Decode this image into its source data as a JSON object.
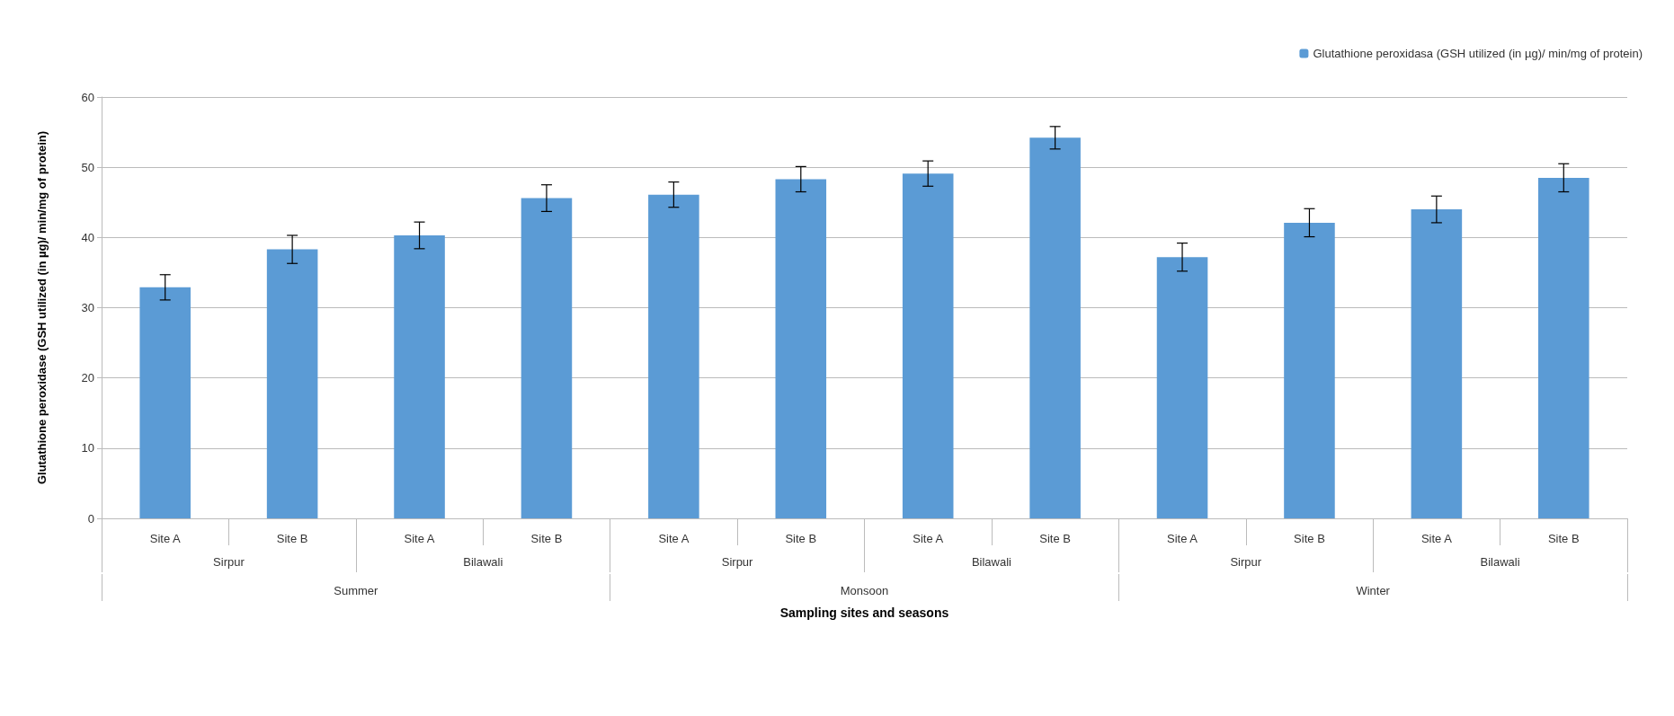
{
  "chart_data": {
    "type": "bar",
    "xlabel": "Sampling sites and seasons",
    "ylabel": "Glutathione peroxidase (GSH utilized (in µg)/ min/mg of protein)",
    "categories": [
      "Site A",
      "Site B",
      "Site A",
      "Site B",
      "Site A",
      "Site B",
      "Site A",
      "Site B",
      "Site A",
      "Site B",
      "Site A",
      "Site B"
    ],
    "series": [
      {
        "name": "Glutathione peroxidasa (GSH utilized (in µg)/ min/mg of protein)",
        "color": "#5b9bd5",
        "values": [
          32.9,
          38.3,
          40.3,
          45.6,
          46.1,
          48.3,
          49.1,
          54.2,
          37.2,
          42.1,
          44.0,
          48.5
        ],
        "errors": [
          1.8,
          2.0,
          1.9,
          1.9,
          1.8,
          1.8,
          1.8,
          1.6,
          2.0,
          2.0,
          1.9,
          2.0
        ]
      }
    ],
    "annotations": [
      "Sirpur",
      "Bilawali",
      "Sirpur",
      "Bilawali",
      "Sirpur",
      "Bilawali",
      "Summer",
      "Monsoon",
      "Winter"
    ],
    "ylim": [
      0,
      60
    ],
    "yticks": [
      0,
      10,
      20,
      30,
      40,
      50,
      60
    ],
    "grid": "y",
    "legend": "top right"
  }
}
